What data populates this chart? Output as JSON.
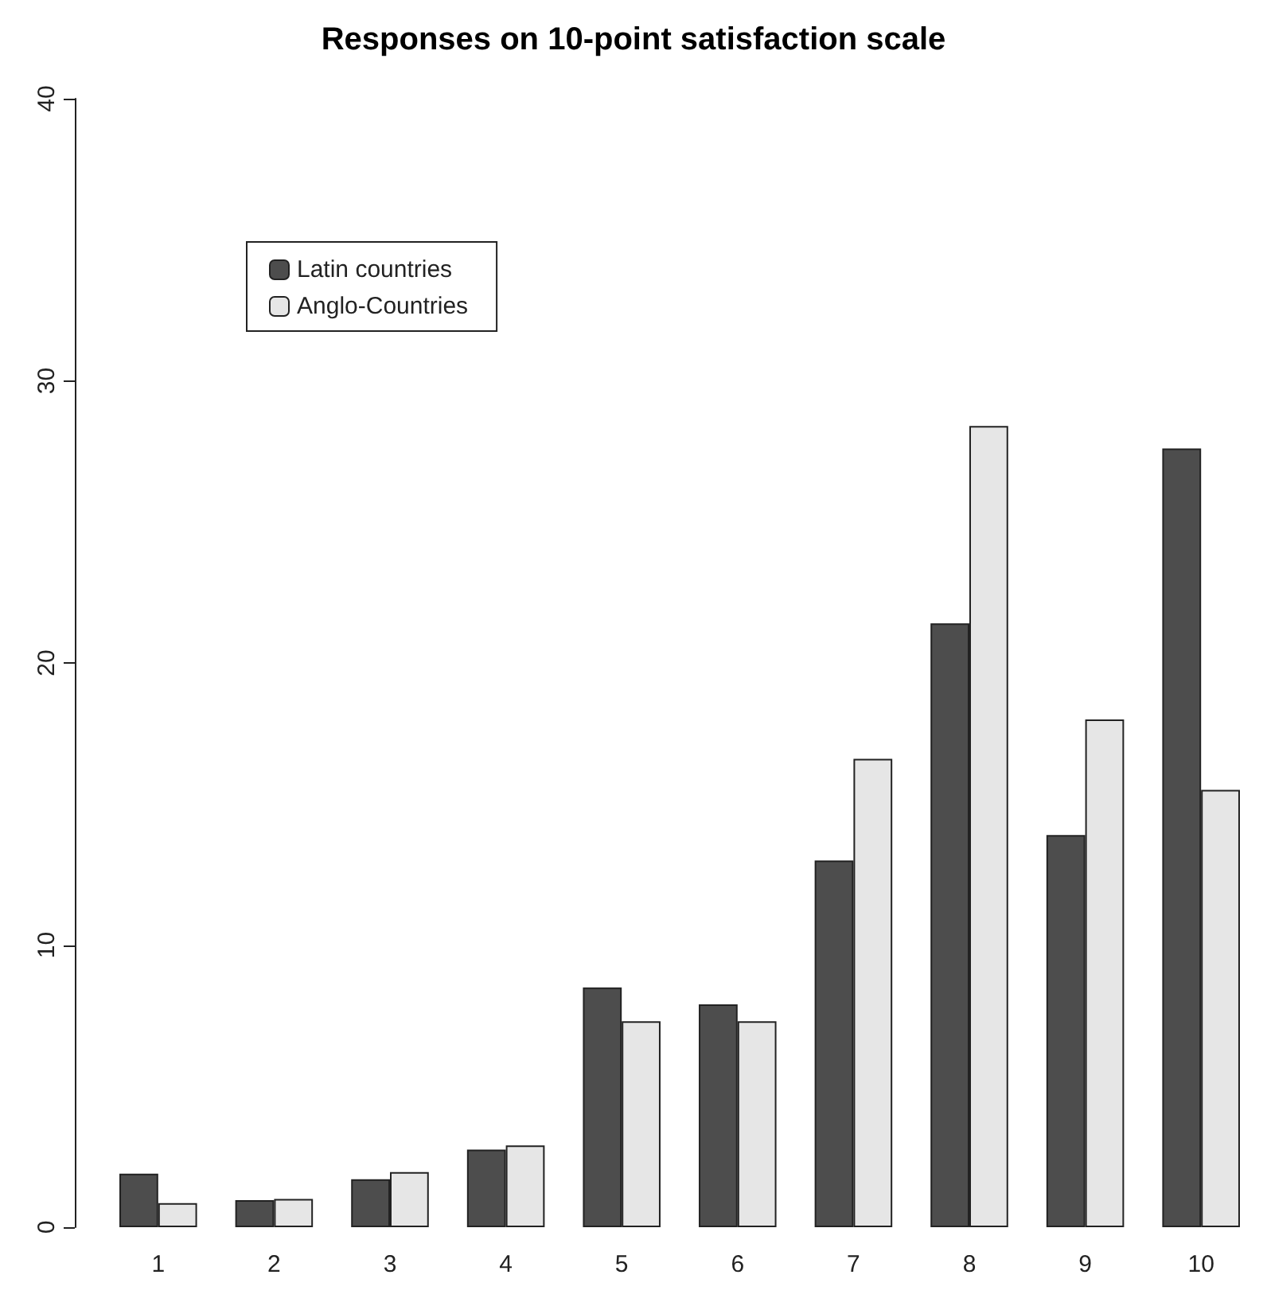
{
  "chart_data": {
    "type": "bar",
    "title": "Responses on 10-point satisfaction scale",
    "categories": [
      "1",
      "2",
      "3",
      "4",
      "5",
      "6",
      "7",
      "8",
      "9",
      "10"
    ],
    "series": [
      {
        "name": "Latin countries",
        "color": "#4d4d4d",
        "values": [
          1.9,
          0.96,
          1.7,
          2.75,
          8.5,
          7.9,
          13.0,
          21.4,
          13.9,
          27.6
        ]
      },
      {
        "name": "Anglo-Countries",
        "color": "#e6e6e6",
        "values": [
          0.85,
          1.0,
          1.95,
          2.9,
          7.3,
          7.3,
          16.6,
          28.4,
          18.0,
          15.5
        ]
      }
    ],
    "ylim": [
      0,
      40
    ],
    "yticks": [
      0,
      10,
      20,
      30,
      40
    ],
    "grid": false,
    "legend": "top left"
  }
}
